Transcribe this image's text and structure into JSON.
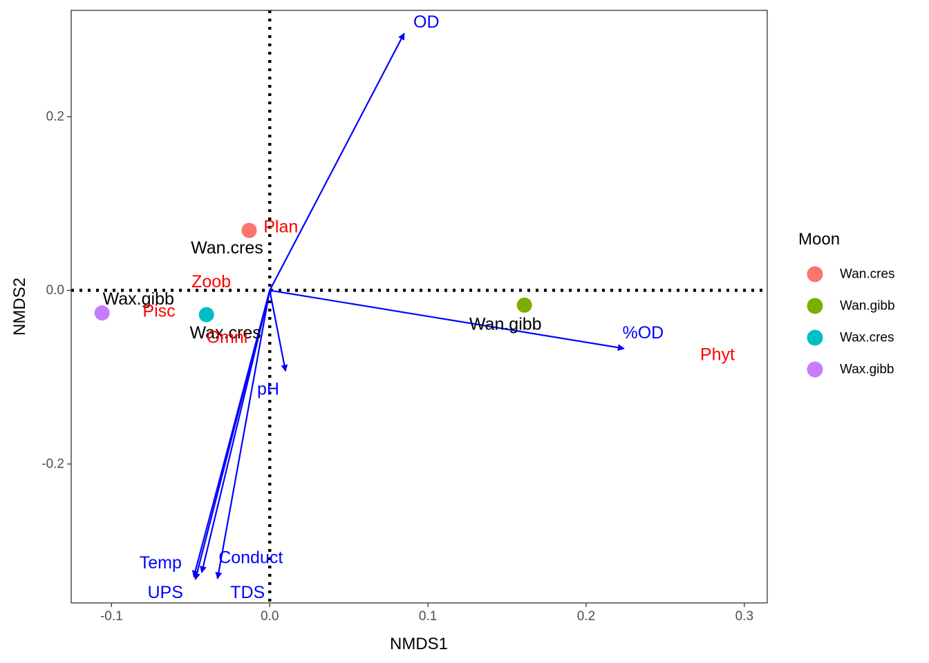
{
  "chart_data": {
    "type": "scatter",
    "xlabel": "NMDS1",
    "ylabel": "NMDS2",
    "xlim": [
      -0.1255,
      0.3145
    ],
    "ylim": [
      -0.36,
      0.3225
    ],
    "x_ticks": [
      -0.1,
      0.0,
      0.1,
      0.2,
      0.3
    ],
    "x_tick_labels": [
      "-0.1",
      "0.0",
      "0.1",
      "0.2",
      "0.3"
    ],
    "y_ticks": [
      -0.2,
      0.0,
      0.2
    ],
    "y_tick_labels": [
      "-0.2",
      "0.0",
      "0.2"
    ],
    "grid": false,
    "reference_lines": {
      "x": 0.0,
      "y": 0.0,
      "style": "dotted"
    },
    "legend": {
      "title": "Moon",
      "placement": "right",
      "entries": [
        {
          "name": "Wan.cres",
          "color": "#F8766D"
        },
        {
          "name": "Wan.gibb",
          "color": "#7CAE00"
        },
        {
          "name": "Wax.cres",
          "color": "#00BFC4"
        },
        {
          "name": "Wax.gibb",
          "color": "#C77CFF"
        }
      ]
    },
    "points": [
      {
        "group": "Wan.cres",
        "x": -0.013,
        "y": 0.069,
        "color": "#F8766D"
      },
      {
        "group": "Wan.gibb",
        "x": 0.161,
        "y": -0.017,
        "color": "#7CAE00"
      },
      {
        "group": "Wax.cres",
        "x": -0.04,
        "y": -0.028,
        "color": "#00BFC4"
      },
      {
        "group": "Wax.gibb",
        "x": -0.106,
        "y": -0.026,
        "color": "#C77CFF"
      }
    ],
    "site_labels": [
      {
        "text": "Wan.cres",
        "x": -0.027,
        "y": 0.049
      },
      {
        "text": "Wan.gibb",
        "x": 0.149,
        "y": -0.039
      },
      {
        "text": "Wax.cres",
        "x": -0.028,
        "y": -0.049
      },
      {
        "text": "Wax.gibb",
        "x": -0.083,
        "y": -0.01
      }
    ],
    "species_labels": [
      {
        "text": "Plan",
        "x": 0.007,
        "y": 0.073
      },
      {
        "text": "Zoob",
        "x": -0.037,
        "y": 0.01
      },
      {
        "text": "Pisc",
        "x": -0.07,
        "y": -0.024
      },
      {
        "text": "Omni",
        "x": -0.027,
        "y": -0.054
      },
      {
        "text": "Phyt",
        "x": 0.283,
        "y": -0.074
      }
    ],
    "vectors": [
      {
        "name": "OD",
        "x_end": 0.085,
        "y_end": 0.296,
        "label_x": 0.099,
        "label_y": 0.309
      },
      {
        "name": "%OD",
        "x_end": 0.224,
        "y_end": -0.067,
        "label_x": 0.236,
        "label_y": -0.049
      },
      {
        "name": "pH",
        "x_end": 0.01,
        "y_end": -0.093,
        "label_x": -0.001,
        "label_y": -0.114
      },
      {
        "name": "Temp",
        "x_end": -0.047,
        "y_end": -0.333,
        "label_x": -0.069,
        "label_y": -0.314
      },
      {
        "name": "Conduct",
        "x_end": -0.043,
        "y_end": -0.325,
        "label_x": -0.012,
        "label_y": -0.308
      },
      {
        "name": "UPS",
        "x_end": -0.048,
        "y_end": -0.33,
        "label_x": -0.066,
        "label_y": -0.348
      },
      {
        "name": "TDS",
        "x_end": -0.033,
        "y_end": -0.332,
        "label_x": -0.014,
        "label_y": -0.348
      }
    ],
    "colors": {
      "vector": "#0000FF",
      "species_label": "#FF0000",
      "site_label": "#000000",
      "axis_text": "#4d4d4d"
    }
  }
}
